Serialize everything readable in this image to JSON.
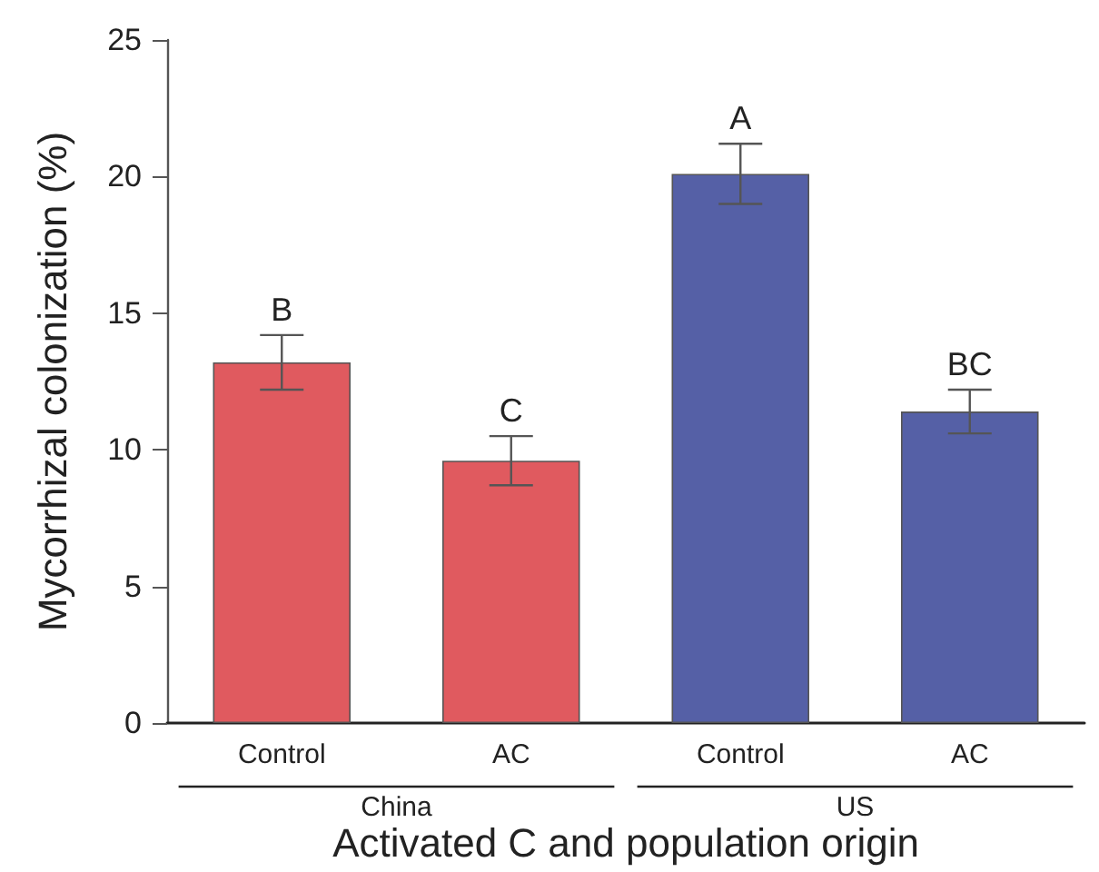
{
  "chart_data": {
    "type": "bar",
    "xlabel": "Activated C and population origin",
    "ylabel": "Mycorrhizal colonization (%)",
    "categories": [
      "Control",
      "AC",
      "Control",
      "AC"
    ],
    "values": [
      13.2,
      9.6,
      20.1,
      11.4
    ],
    "colors": [
      "#e05a5f",
      "#e05a5f",
      "#5560a6",
      "#5560a6"
    ],
    "errors": [
      1.0,
      0.9,
      1.1,
      0.8
    ],
    "value_labels": [
      "B",
      "C",
      "A",
      "BC"
    ],
    "annotations": [
      "China",
      "US"
    ],
    "ylim": [
      0,
      25
    ],
    "yticks": [
      0,
      5,
      10,
      15,
      20,
      25
    ],
    "grid": false
  }
}
